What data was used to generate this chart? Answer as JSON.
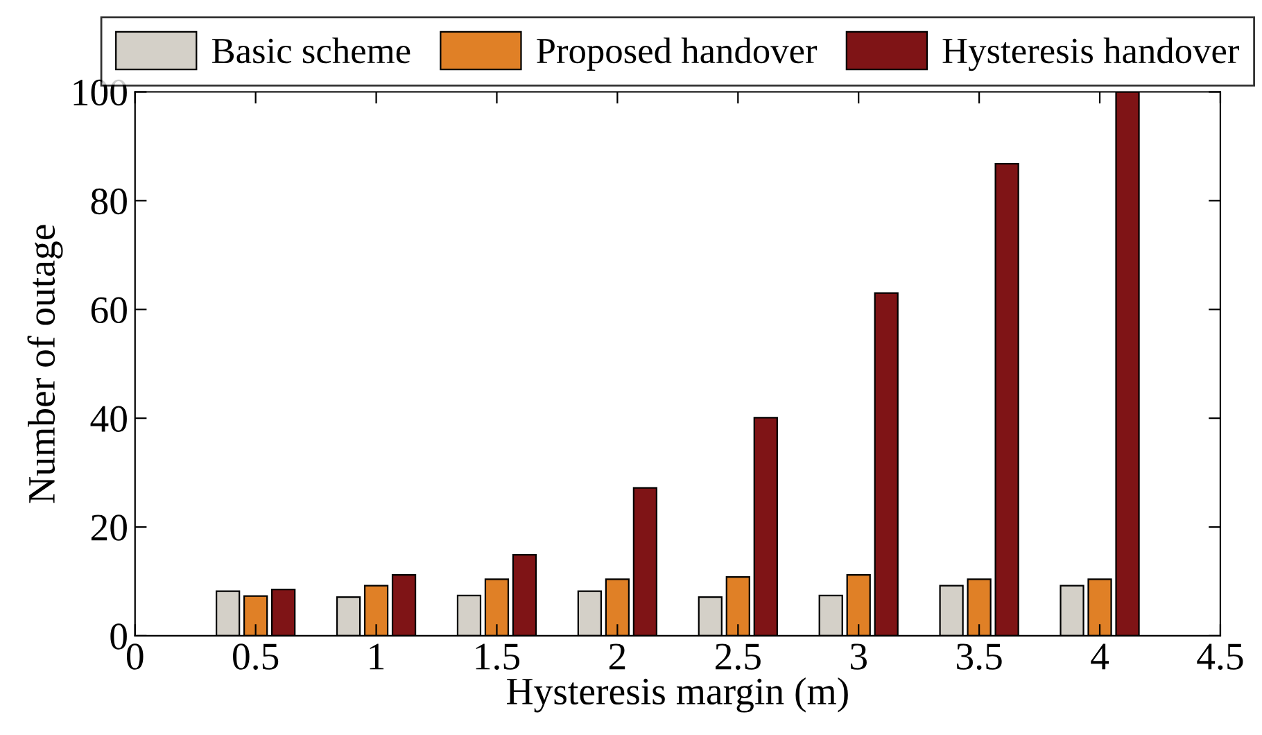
{
  "chart_data": {
    "type": "bar",
    "xlabel": "Hysteresis margin (m)",
    "ylabel": "Number of outage",
    "x": [
      0.5,
      1,
      1.5,
      2,
      2.5,
      3,
      3.5,
      4
    ],
    "series": [
      {
        "name": "Basic scheme",
        "color": "#d4d0c8",
        "values": [
          8.2,
          7.1,
          7.4,
          8.2,
          7.1,
          7.4,
          9.2,
          9.2
        ]
      },
      {
        "name": "Proposed handover",
        "color": "#e08026",
        "values": [
          7.3,
          9.2,
          10.4,
          10.4,
          10.8,
          11.2,
          10.4,
          10.4
        ]
      },
      {
        "name": "Hysteresis handover",
        "color": "#7f1416",
        "values": [
          8.5,
          11.2,
          14.9,
          27.2,
          40.1,
          63,
          86.8,
          100
        ]
      }
    ],
    "xlim": [
      0,
      4.5
    ],
    "xticks": [
      0,
      0.5,
      1,
      1.5,
      2,
      2.5,
      3,
      3.5,
      4,
      4.5
    ],
    "ylim": [
      0,
      100
    ],
    "yticks": [
      0,
      20,
      40,
      60,
      80,
      100
    ],
    "grid": false,
    "legend": "top"
  }
}
